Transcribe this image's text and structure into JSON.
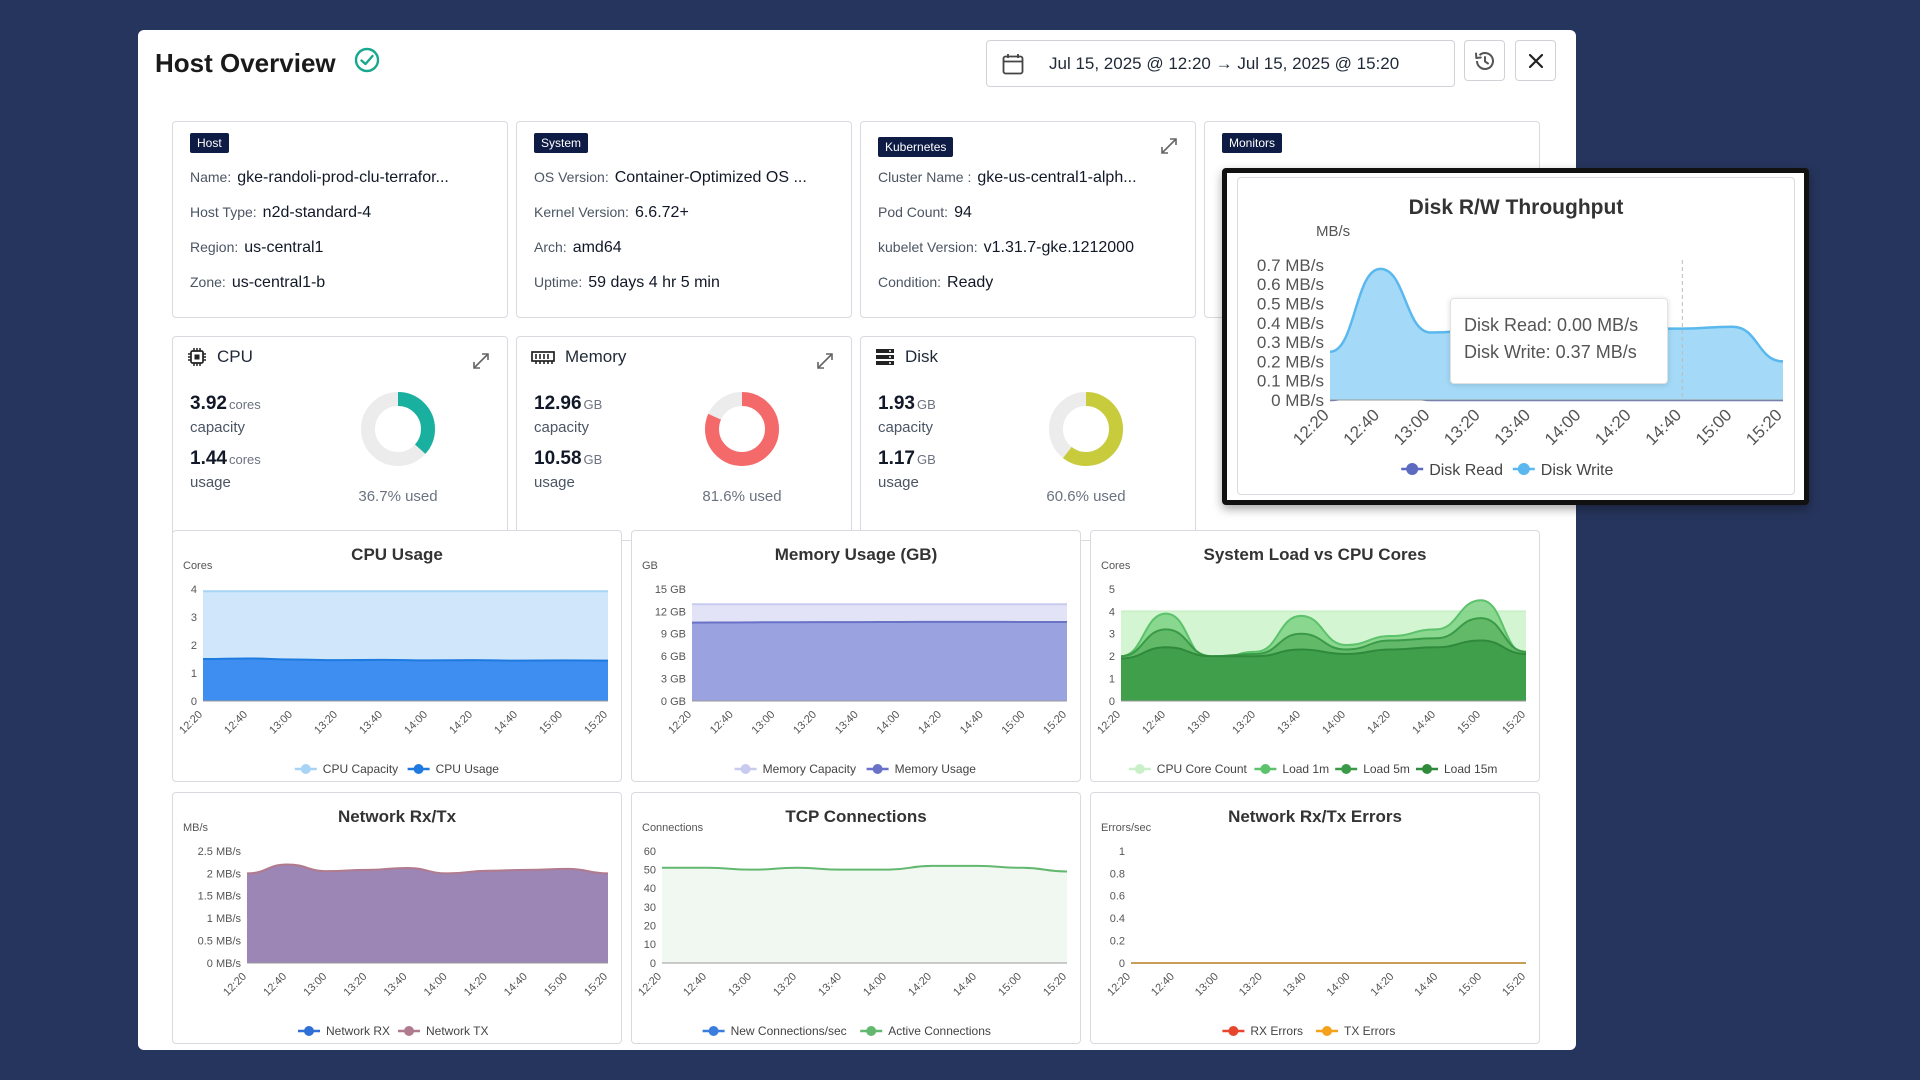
{
  "header": {
    "title": "Host Overview",
    "date_range": "Jul 15, 2025 @ 12:20 → Jul 15, 2025 @ 15:20"
  },
  "host": {
    "badge": "Host",
    "rows": [
      {
        "label": "Name:",
        "value": "gke-randoli-prod-clu-terrafor..."
      },
      {
        "label": "Host Type:",
        "value": "n2d-standard-4"
      },
      {
        "label": "Region:",
        "value": "us-central1"
      },
      {
        "label": "Zone:",
        "value": "us-central1-b"
      }
    ]
  },
  "system": {
    "badge": "System",
    "rows": [
      {
        "label": "OS Version:",
        "value": "Container-Optimized OS ..."
      },
      {
        "label": "Kernel Version:",
        "value": "6.6.72+"
      },
      {
        "label": "Arch:",
        "value": "amd64"
      },
      {
        "label": "Uptime:",
        "value": "59 days 4 hr 5 min"
      }
    ]
  },
  "kubernetes": {
    "badge": "Kubernetes",
    "rows": [
      {
        "label": "Cluster Name :",
        "value": "gke-us-central1-alph..."
      },
      {
        "label": "Pod Count:",
        "value": "94"
      },
      {
        "label": "kubelet Version:",
        "value": "v1.31.7-gke.1212000"
      },
      {
        "label": "Condition:",
        "value": "Ready"
      }
    ]
  },
  "monitors": {
    "badge": "Monitors"
  },
  "resources": {
    "cpu": {
      "label": "CPU",
      "capacity": "3.92",
      "capacity_unit": "cores",
      "capacity_label": "capacity",
      "usage": "1.44",
      "usage_unit": "cores",
      "usage_label": "usage",
      "percent": 36.7,
      "used_text": "36.7% used",
      "color": "#1ab0a0"
    },
    "memory": {
      "label": "Memory",
      "capacity": "12.96",
      "capacity_unit": "GB",
      "capacity_label": "capacity",
      "usage": "10.58",
      "usage_unit": "GB",
      "usage_label": "usage",
      "percent": 81.6,
      "used_text": "81.6% used",
      "color": "#f46a6a"
    },
    "disk": {
      "label": "Disk",
      "capacity": "1.93",
      "capacity_unit": "GB",
      "capacity_label": "capacity",
      "usage": "1.17",
      "usage_unit": "GB",
      "usage_label": "usage",
      "percent": 60.6,
      "used_text": "60.6% used",
      "color": "#c8cc3c"
    }
  },
  "time_labels": [
    "12:20",
    "12:40",
    "13:00",
    "13:20",
    "13:40",
    "14:00",
    "14:20",
    "14:40",
    "15:00",
    "15:20"
  ],
  "chart_data": [
    {
      "id": "cpu",
      "type": "area",
      "title": "CPU Usage",
      "ylabel": "Cores",
      "ylim": [
        0,
        4
      ],
      "yticks": [
        0,
        1,
        2,
        3,
        4
      ],
      "ytick_labels": [
        "0",
        "1",
        "2",
        "3",
        "4"
      ],
      "series": [
        {
          "name": "CPU Capacity",
          "color": "#a7d3f5",
          "fill": "#cfe6fb",
          "values": [
            3.92,
            3.92,
            3.92,
            3.92,
            3.92,
            3.92,
            3.92,
            3.92,
            3.92,
            3.92
          ]
        },
        {
          "name": "CPU Usage",
          "color": "#1f7ae0",
          "fill": "#3d8ef0",
          "values": [
            1.5,
            1.52,
            1.48,
            1.46,
            1.47,
            1.45,
            1.46,
            1.44,
            1.45,
            1.44
          ]
        }
      ]
    },
    {
      "id": "memory",
      "type": "area",
      "title": "Memory Usage (GB)",
      "ylabel": "GB",
      "ylim": [
        0,
        15
      ],
      "yticks": [
        0,
        3,
        6,
        9,
        12,
        15
      ],
      "ytick_labels": [
        "0 GB",
        "3 GB",
        "6 GB",
        "9 GB",
        "12 GB",
        "15 GB"
      ],
      "series": [
        {
          "name": "Memory Capacity",
          "color": "#c9cbee",
          "fill": "#e2e3f6",
          "values": [
            12.96,
            12.96,
            12.96,
            12.96,
            12.96,
            12.96,
            12.96,
            12.96,
            12.96,
            12.96
          ]
        },
        {
          "name": "Memory Usage",
          "color": "#6a72c8",
          "fill": "#9aa2e0",
          "values": [
            10.5,
            10.52,
            10.55,
            10.56,
            10.57,
            10.58,
            10.6,
            10.6,
            10.58,
            10.58
          ]
        }
      ]
    },
    {
      "id": "load",
      "type": "area",
      "title": "System Load vs CPU Cores",
      "ylabel": "Cores",
      "ylim": [
        0,
        5
      ],
      "yticks": [
        0,
        1,
        2,
        3,
        4,
        5
      ],
      "ytick_labels": [
        "0",
        "1",
        "2",
        "3",
        "4",
        "5"
      ],
      "series": [
        {
          "name": "CPU Core Count",
          "color": "#c9f0c9",
          "fill": "#d4f5d2",
          "values": [
            4,
            4,
            4,
            4,
            4,
            4,
            4,
            4,
            4,
            4
          ]
        },
        {
          "name": "Load 1m",
          "color": "#5cc26b",
          "fill": "#7cd184",
          "values": [
            2.0,
            3.9,
            1.8,
            2.2,
            3.8,
            2.5,
            2.9,
            3.2,
            4.5,
            2.1
          ]
        },
        {
          "name": "Load 5m",
          "color": "#3a9a47",
          "fill": "#5bb561",
          "values": [
            2.0,
            3.2,
            2.0,
            2.1,
            3.0,
            2.3,
            2.7,
            2.8,
            3.7,
            2.2
          ]
        },
        {
          "name": "Load 15m",
          "color": "#2f8a3c",
          "fill": "#3b9a45",
          "values": [
            1.9,
            2.4,
            2.0,
            2.0,
            2.3,
            2.1,
            2.3,
            2.4,
            2.7,
            2.1
          ]
        }
      ]
    },
    {
      "id": "network",
      "type": "area",
      "title": "Network Rx/Tx",
      "ylabel": "MB/s",
      "ylim": [
        0,
        2.5
      ],
      "yticks": [
        0,
        0.5,
        1,
        1.5,
        2,
        2.5
      ],
      "ytick_labels": [
        "0 MB/s",
        "0.5 MB/s",
        "1 MB/s",
        "1.5 MB/s",
        "2 MB/s",
        "2.5 MB/s"
      ],
      "series": [
        {
          "name": "Network RX",
          "color": "#2f6fd6",
          "fill": "#8f7fb0",
          "values": [
            1.9,
            2.05,
            1.95,
            1.97,
            2.0,
            1.9,
            1.95,
            1.97,
            1.98,
            1.9
          ]
        },
        {
          "name": "Network TX",
          "color": "#b07b8e",
          "fill": "#9c86b5",
          "values": [
            2.0,
            2.2,
            2.05,
            2.08,
            2.12,
            2.0,
            2.06,
            2.08,
            2.1,
            2.0
          ]
        }
      ]
    },
    {
      "id": "tcp",
      "type": "line",
      "title": "TCP Connections",
      "ylabel": "Connections",
      "ylim": [
        0,
        60
      ],
      "yticks": [
        0,
        10,
        20,
        30,
        40,
        50,
        60
      ],
      "ytick_labels": [
        "0",
        "10",
        "20",
        "30",
        "40",
        "50",
        "60"
      ],
      "series": [
        {
          "name": "New Connections/sec",
          "color": "#3b7ddd",
          "fill": "none",
          "values": [
            5,
            5,
            5,
            5,
            5,
            5,
            5,
            5,
            5,
            5
          ]
        },
        {
          "name": "Active Connections",
          "color": "#63b86f",
          "fill": "#f1f8f2",
          "values": [
            51,
            51,
            50,
            51,
            50,
            50,
            52,
            52,
            51,
            49
          ]
        }
      ]
    },
    {
      "id": "errors",
      "type": "line",
      "title": "Network Rx/Tx Errors",
      "ylabel": "Errors/sec",
      "ylim": [
        0,
        1
      ],
      "yticks": [
        0,
        0.2,
        0.4,
        0.6,
        0.8,
        1
      ],
      "ytick_labels": [
        "0",
        "0.2",
        "0.4",
        "0.6",
        "0.8",
        "1"
      ],
      "series": [
        {
          "name": "RX Errors",
          "color": "#e8452f",
          "fill": "none",
          "values": [
            0,
            0,
            0,
            0,
            0,
            0,
            0,
            0,
            0,
            0
          ]
        },
        {
          "name": "TX Errors",
          "color": "#f5a21b",
          "fill": "none",
          "values": [
            0,
            0,
            0,
            0,
            0,
            0,
            0,
            0,
            0,
            0
          ]
        }
      ]
    },
    {
      "id": "disk",
      "type": "area",
      "title": "Disk R/W Throughput",
      "ylabel": "MB/s",
      "ylim": [
        0,
        0.7
      ],
      "yticks": [
        0,
        0.1,
        0.2,
        0.3,
        0.4,
        0.5,
        0.6,
        0.7
      ],
      "ytick_labels": [
        "0 MB/s",
        "0.1 MB/s",
        "0.2 MB/s",
        "0.3 MB/s",
        "0.4 MB/s",
        "0.5 MB/s",
        "0.6 MB/s",
        "0.7 MB/s"
      ],
      "series": [
        {
          "name": "Disk Read",
          "color": "#5c6bc0",
          "fill": "#6a78c8",
          "values": [
            0,
            0.08,
            0,
            0,
            0,
            0,
            0,
            0,
            0,
            0
          ]
        },
        {
          "name": "Disk Write",
          "color": "#5ab8ee",
          "fill": "#a4daf7",
          "values": [
            0.25,
            0.68,
            0.35,
            0.36,
            0.37,
            0.37,
            0.37,
            0.37,
            0.38,
            0.2
          ]
        }
      ],
      "tooltip": [
        "Disk Read: 0.00 MB/s",
        "Disk Write: 0.37 MB/s"
      ]
    }
  ]
}
